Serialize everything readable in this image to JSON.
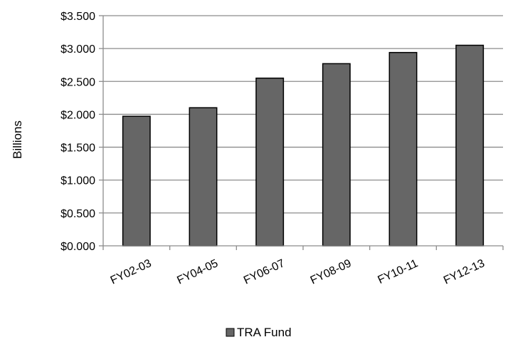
{
  "chart_data": {
    "type": "bar",
    "title": "",
    "xlabel": "",
    "ylabel": "Billions",
    "categories": [
      "FY02-03",
      "FY04-05",
      "FY06-07",
      "FY08-09",
      "FY10-11",
      "FY12-13"
    ],
    "series": [
      {
        "name": "TRA Fund",
        "values": [
          1.97,
          2.1,
          2.55,
          2.77,
          2.94,
          3.05
        ]
      }
    ],
    "ylim": [
      0,
      3.5
    ],
    "yticks": [
      "$0.000",
      "$0.500",
      "$1.000",
      "$1.500",
      "$2.000",
      "$2.500",
      "$3.000",
      "$3.500"
    ],
    "grid": true,
    "legend_position": "bottom",
    "colors": {
      "bar_fill": "#666666",
      "bar_stroke": "#000000",
      "grid": "#8c8c8c",
      "axis": "#8c8c8c"
    }
  }
}
